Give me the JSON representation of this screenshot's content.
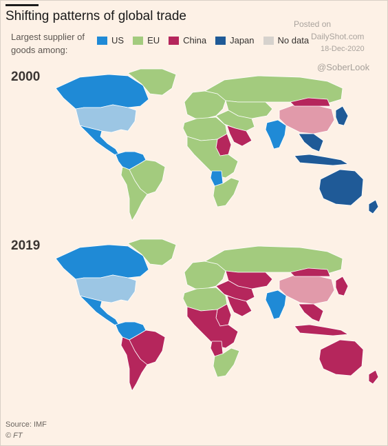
{
  "header": {
    "title": "Shifting patterns of global trade",
    "legend_label": "Largest supplier of goods among:"
  },
  "watermark": {
    "posted": "Posted on",
    "site": "DailyShot.com",
    "date": "18-Dec-2020",
    "handle": "@SoberLook"
  },
  "colors": {
    "US": "#1f8ad6",
    "US_self": "#9cc6e4",
    "EU": "#a3cb7e",
    "China": "#b5265c",
    "China_self": "#e19aaa",
    "Japan": "#1f5a97",
    "No data": "#d6d2cd"
  },
  "chart_data": {
    "type": "choropleth",
    "legend": [
      "US",
      "EU",
      "China",
      "Japan",
      "No data"
    ],
    "maps": [
      {
        "year": "2000",
        "regions": {
          "north_america_canada": "US",
          "greenland": "EU",
          "usa": "US_self",
          "mexico_central_america": "US",
          "venezuela_colombia": "US",
          "brazil": "EU",
          "southern_south_america": "EU",
          "europe": "EU",
          "russia": "EU",
          "central_asia": "EU",
          "middle_east": "EU",
          "saudi_arabia": "China",
          "north_africa": "EU",
          "sudan": "China",
          "central_africa": "EU",
          "angola": "US",
          "southern_africa": "EU",
          "india": "US",
          "china": "China_self",
          "mongolia": "China",
          "korea_japan": "Japan",
          "southeast_asia": "Japan",
          "indonesia": "Japan",
          "australia": "Japan",
          "new_zealand": "Japan"
        }
      },
      {
        "year": "2019",
        "regions": {
          "north_america_canada": "US",
          "greenland": "EU",
          "usa": "US_self",
          "mexico_central_america": "US",
          "venezuela_colombia": "US",
          "brazil": "China",
          "southern_south_america": "China",
          "europe": "EU",
          "russia": "EU",
          "central_asia": "China",
          "middle_east": "China",
          "saudi_arabia": "China",
          "north_africa": "EU",
          "sudan": "China",
          "central_africa": "China",
          "angola": "China",
          "southern_africa": "EU",
          "india": "US",
          "china": "China_self",
          "mongolia": "China",
          "korea_japan": "China",
          "southeast_asia": "China",
          "indonesia": "China",
          "australia": "China",
          "new_zealand": "China"
        }
      }
    ]
  },
  "footer": {
    "source": "Source: IMF",
    "credit": "© FT"
  }
}
